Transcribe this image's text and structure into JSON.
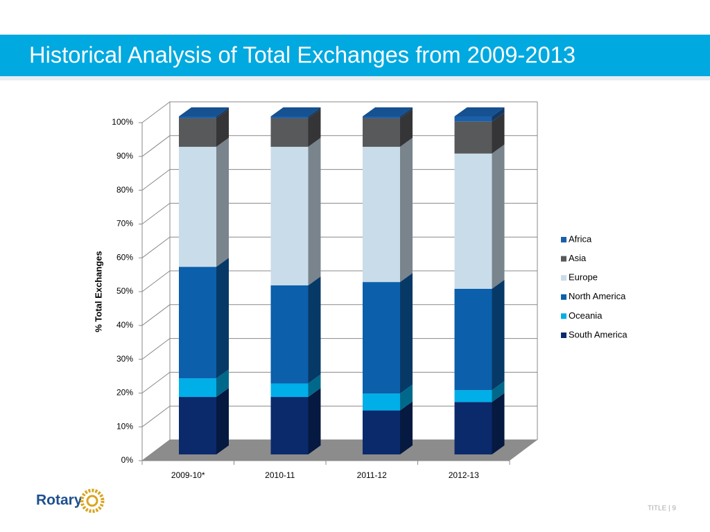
{
  "header": {
    "title": "Historical Analysis of Total Exchanges from 2009-2013"
  },
  "chart_data": {
    "type": "bar",
    "stacked": true,
    "ylabel": "% Total Exchanges",
    "categories": [
      "2009-10*",
      "2010-11",
      "2011-12",
      "2012-13"
    ],
    "series": [
      {
        "name": "South America",
        "color": "#0a2a6b",
        "values": [
          17,
          17,
          13,
          15.5
        ]
      },
      {
        "name": "Oceania",
        "color": "#00aee8",
        "values": [
          5.5,
          4,
          5,
          3.5
        ]
      },
      {
        "name": "North America",
        "color": "#0b5fab",
        "values": [
          33,
          29,
          33,
          30
        ]
      },
      {
        "name": "Europe",
        "color": "#c9dce9",
        "values": [
          35.5,
          41,
          40,
          40
        ]
      },
      {
        "name": "Asia",
        "color": "#58595b",
        "values": [
          8.5,
          8.5,
          8.5,
          9.5
        ]
      },
      {
        "name": "Africa",
        "color": "#1a5faa",
        "values": [
          0.5,
          0.5,
          0.5,
          1.5
        ]
      }
    ],
    "ylim": [
      0,
      100
    ],
    "yticks": [
      {
        "value": 0,
        "label": "0%"
      },
      {
        "value": 10,
        "label": "10%"
      },
      {
        "value": 20,
        "label": "20%"
      },
      {
        "value": 30,
        "label": "30%"
      },
      {
        "value": 40,
        "label": "40%"
      },
      {
        "value": 50,
        "label": "50%"
      },
      {
        "value": 60,
        "label": "60%"
      },
      {
        "value": 70,
        "label": "70%"
      },
      {
        "value": 80,
        "label": "80%"
      },
      {
        "value": 90,
        "label": "90%"
      },
      {
        "value": 100,
        "label": "100%"
      }
    ],
    "grid": true,
    "legend": "right"
  },
  "footer": {
    "logo": "Rotary",
    "text": "TITLE | 9"
  }
}
